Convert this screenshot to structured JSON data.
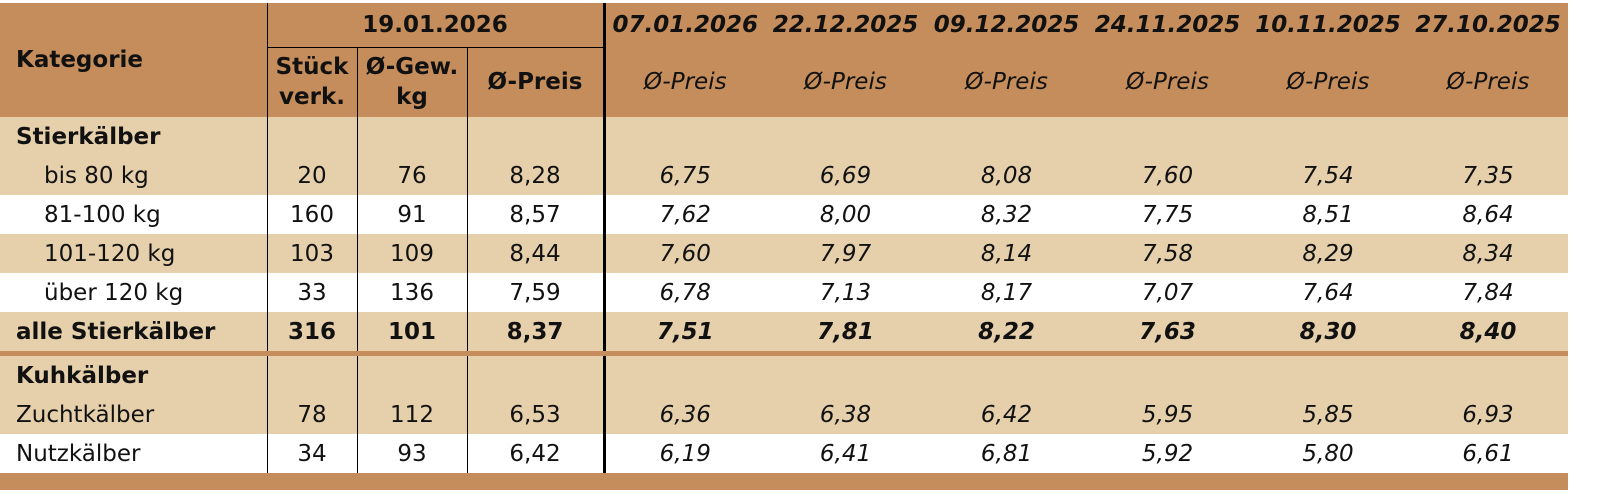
{
  "table": {
    "header": {
      "category": "Kategorie",
      "current_date": "19.01.2026",
      "current_columns": [
        "Stück\nverk.",
        "Ø-Gew.\nkg",
        "Ø-Preis"
      ],
      "past_columns": [
        {
          "date": "07.01.2026",
          "label": "Ø-Preis"
        },
        {
          "date": "22.12.2025",
          "label": "Ø-Preis"
        },
        {
          "date": "09.12.2025",
          "label": "Ø-Preis"
        },
        {
          "date": "24.11.2025",
          "label": "Ø-Preis"
        },
        {
          "date": "10.11.2025",
          "label": "Ø-Preis"
        },
        {
          "date": "27.10.2025",
          "label": "Ø-Preis"
        }
      ]
    },
    "sections": [
      {
        "title": "Stierkälber",
        "rows": [
          {
            "label": "bis 80 kg",
            "values": [
              "20",
              "76",
              "8,28",
              "6,75",
              "6,69",
              "8,08",
              "7,60",
              "7,54",
              "7,35"
            ]
          },
          {
            "label": "81-100 kg",
            "values": [
              "160",
              "91",
              "8,57",
              "7,62",
              "8,00",
              "8,32",
              "7,75",
              "8,51",
              "8,64"
            ]
          },
          {
            "label": "101-120 kg",
            "values": [
              "103",
              "109",
              "8,44",
              "7,60",
              "7,97",
              "8,14",
              "7,58",
              "8,29",
              "8,34"
            ]
          },
          {
            "label": "über 120 kg",
            "values": [
              "33",
              "136",
              "7,59",
              "6,78",
              "7,13",
              "8,17",
              "7,07",
              "7,64",
              "7,84"
            ]
          }
        ],
        "total": {
          "label": "alle Stierkälber",
          "values": [
            "316",
            "101",
            "8,37",
            "7,51",
            "7,81",
            "8,22",
            "7,63",
            "8,30",
            "8,40"
          ]
        }
      },
      {
        "title": "Kuhkälber",
        "rows": [
          {
            "label": "Zuchtkälber",
            "values": [
              "78",
              "112",
              "6,53",
              "6,36",
              "6,38",
              "6,42",
              "5,95",
              "5,85",
              "6,93"
            ]
          },
          {
            "label": "Nutzkälber",
            "values": [
              "34",
              "93",
              "6,42",
              "6,19",
              "6,41",
              "6,81",
              "5,92",
              "5,80",
              "6,61"
            ]
          }
        ]
      }
    ]
  }
}
